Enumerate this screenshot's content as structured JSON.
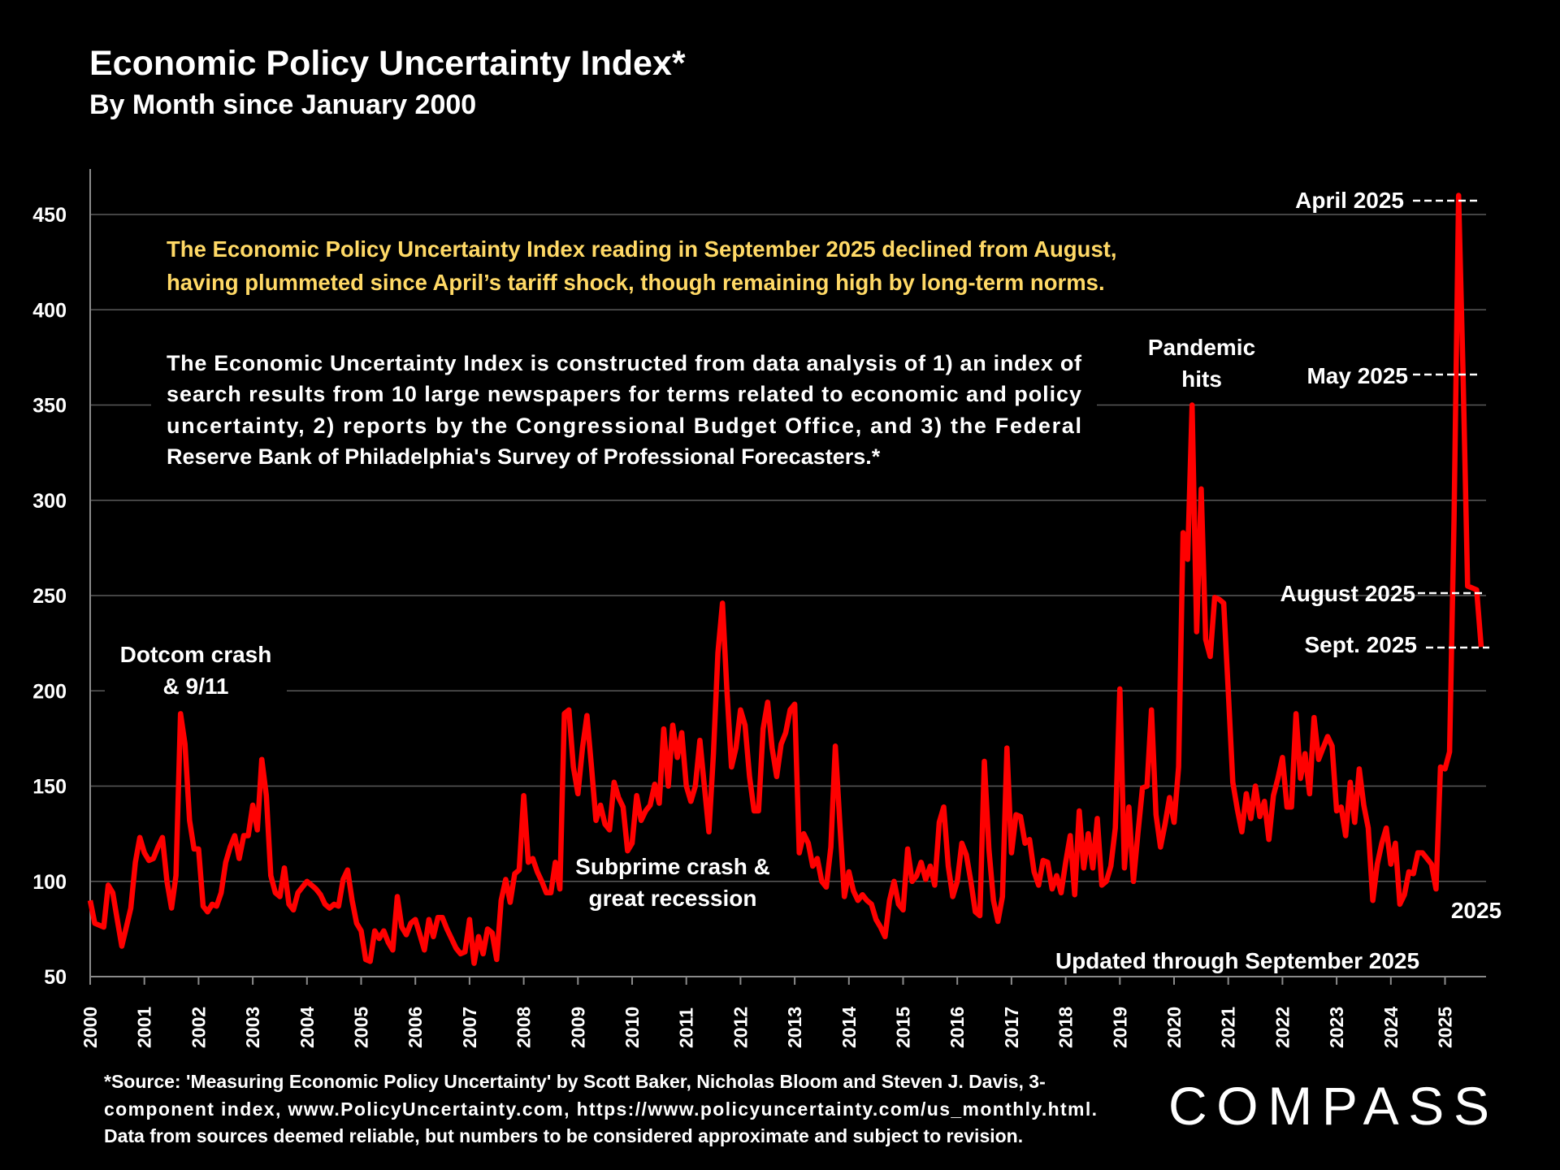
{
  "header": {
    "title": "Economic Policy Uncertainty Index*",
    "subtitle": "By Month since January 2000"
  },
  "highlight": [
    "The Economic Policy Uncertainty Index reading in September 2025 declined from August,",
    "having plummeted since April’s tariff shock, though remaining high by long-term norms."
  ],
  "description": [
    "The Economic Uncertainty Index is constructed from data analysis of 1) an index of",
    "search results from 10 large newspapers for terms related to economic and policy",
    "uncertainty, 2) reports by the Congressional Budget Office, and 3) the Federal",
    "Reserve Bank of Philadelphia's Survey of Professional Forecasters.*"
  ],
  "annotations": {
    "dotcom": [
      "Dotcom crash",
      "& 9/11"
    ],
    "subprime": [
      "Subprime crash &",
      "great recession"
    ],
    "pandemic": [
      "Pandemic",
      "hits"
    ],
    "april": "April 2025",
    "may": "May 2025",
    "august": "August 2025",
    "sept": "Sept. 2025",
    "year_2025": "2025",
    "updated": "Updated through September 2025"
  },
  "footnote": [
    "*Source: 'Measuring Economic Policy Uncertainty' by Scott Baker, Nicholas Bloom and Steven J. Davis, 3-",
    "component index, www.PolicyUncertainty.com, https://www.policyuncertainty.com/us_monthly.html.",
    "Data from sources deemed reliable, but numbers to be considered approximate and subject to revision."
  ],
  "logo": "COMPASS",
  "colors": {
    "line": "#FF0000",
    "highlight": "#FFD966",
    "background": "#000000",
    "grid": "#5a5a5a"
  },
  "chart_data": {
    "type": "line",
    "title": "Economic Policy Uncertainty Index*",
    "subtitle": "By Month since January 2000",
    "xlabel": "",
    "ylabel": "",
    "x_start": "2000-01",
    "x_end": "2025-09",
    "frequency": "monthly",
    "ylim": [
      50,
      450
    ],
    "yticks": [
      50,
      100,
      150,
      200,
      250,
      300,
      350,
      400,
      450
    ],
    "xticks": [
      "2000",
      "2001",
      "2002",
      "2003",
      "2004",
      "2005",
      "2006",
      "2007",
      "2008",
      "2009",
      "2010",
      "2011",
      "2012",
      "2013",
      "2014",
      "2015",
      "2016",
      "2017",
      "2018",
      "2019",
      "2020",
      "2021",
      "2022",
      "2023",
      "2024",
      "2025"
    ],
    "grid": "horizontal",
    "series": [
      {
        "values": [
          90,
          78,
          77,
          76,
          98,
          94,
          80,
          66,
          76,
          86,
          110,
          123,
          115,
          111,
          112,
          118,
          123,
          100,
          86,
          103,
          188,
          172,
          132,
          117,
          117,
          87,
          84,
          88,
          87,
          94,
          110,
          118,
          124,
          112,
          124,
          124,
          140,
          127,
          164,
          145,
          103,
          94,
          92,
          107,
          88,
          85,
          94,
          97,
          100,
          98,
          96,
          93,
          88,
          86,
          88,
          87,
          101,
          106,
          90,
          78,
          74,
          59,
          58,
          74,
          70,
          74,
          68,
          64,
          92,
          76,
          72,
          78,
          80,
          72,
          64,
          80,
          71,
          81,
          81,
          75,
          70,
          65,
          62,
          63,
          80,
          57,
          71,
          62,
          75,
          73,
          59,
          90,
          101,
          89,
          104,
          106,
          145,
          110,
          112,
          105,
          100,
          94,
          94,
          110,
          96,
          188,
          190,
          160,
          146,
          170,
          187,
          160,
          132,
          140,
          130,
          127,
          152,
          144,
          139,
          116,
          120,
          145,
          132,
          137,
          140,
          151,
          141,
          180,
          150,
          182,
          165,
          178,
          150,
          142,
          150,
          174,
          150,
          126,
          167,
          220,
          246,
          200,
          160,
          170,
          190,
          182,
          155,
          137,
          137,
          180,
          194,
          170,
          155,
          172,
          178,
          190,
          193,
          115,
          125,
          120,
          108,
          112,
          100,
          97,
          118,
          171,
          130,
          92,
          105,
          95,
          90,
          93,
          90,
          88,
          80,
          76,
          71,
          90,
          100,
          88,
          85,
          117,
          100,
          103,
          110,
          101,
          108,
          98,
          131,
          139,
          108,
          92,
          100,
          120,
          114,
          100,
          84,
          82,
          163,
          117,
          90,
          79,
          92,
          170,
          115,
          135,
          134,
          120,
          122,
          105,
          98,
          111,
          110,
          96,
          103,
          94,
          110,
          124,
          93,
          137,
          107,
          125,
          107,
          133,
          98,
          100,
          108,
          128,
          201,
          107,
          139,
          100,
          125,
          149,
          150,
          190,
          135,
          118,
          130,
          144,
          131,
          160,
          283,
          269,
          350,
          231,
          306,
          227,
          218,
          249,
          248,
          246,
          200,
          152,
          138,
          126,
          146,
          133,
          150,
          134,
          142,
          122,
          145,
          154,
          165,
          139,
          139,
          188,
          154,
          167,
          146,
          186,
          164,
          170,
          176,
          171,
          137,
          139,
          124,
          152,
          131,
          159,
          140,
          128,
          90,
          109,
          120,
          128,
          109,
          120,
          88,
          93,
          105,
          104,
          115,
          115,
          112,
          109,
          96,
          160,
          159,
          168,
          290,
          460,
          366,
          255,
          254,
          253,
          223
        ]
      }
    ]
  }
}
